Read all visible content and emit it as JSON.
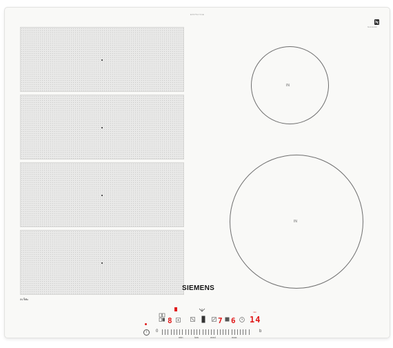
{
  "panel": {
    "model_code": "EX675LYC1E",
    "brand_text": "SIEMENS",
    "brand_logo_mark_text": "N",
    "brand_logo_caption": "flexInduction"
  },
  "zones": {
    "flex_zones": [
      {
        "name": "flex-zone-1"
      },
      {
        "name": "flex-zone-2"
      },
      {
        "name": "flex-zone-3"
      },
      {
        "name": "flex-zone-4"
      }
    ],
    "ring_top_label": "IN",
    "ring_bottom_label": "IN",
    "flex_label": "IN"
  },
  "controls": {
    "left_display": "8",
    "right_display_1": "7",
    "right_display_2": "6",
    "timer_display": "14",
    "timer_unit": "min",
    "slider_labels": [
      "min",
      "low",
      "med",
      "max"
    ],
    "boost_symbol": "b",
    "zero_symbol": "0",
    "power_symbol": "i"
  },
  "colors": {
    "panel": "#f9f9f7",
    "display_red": "#e01a1a"
  }
}
